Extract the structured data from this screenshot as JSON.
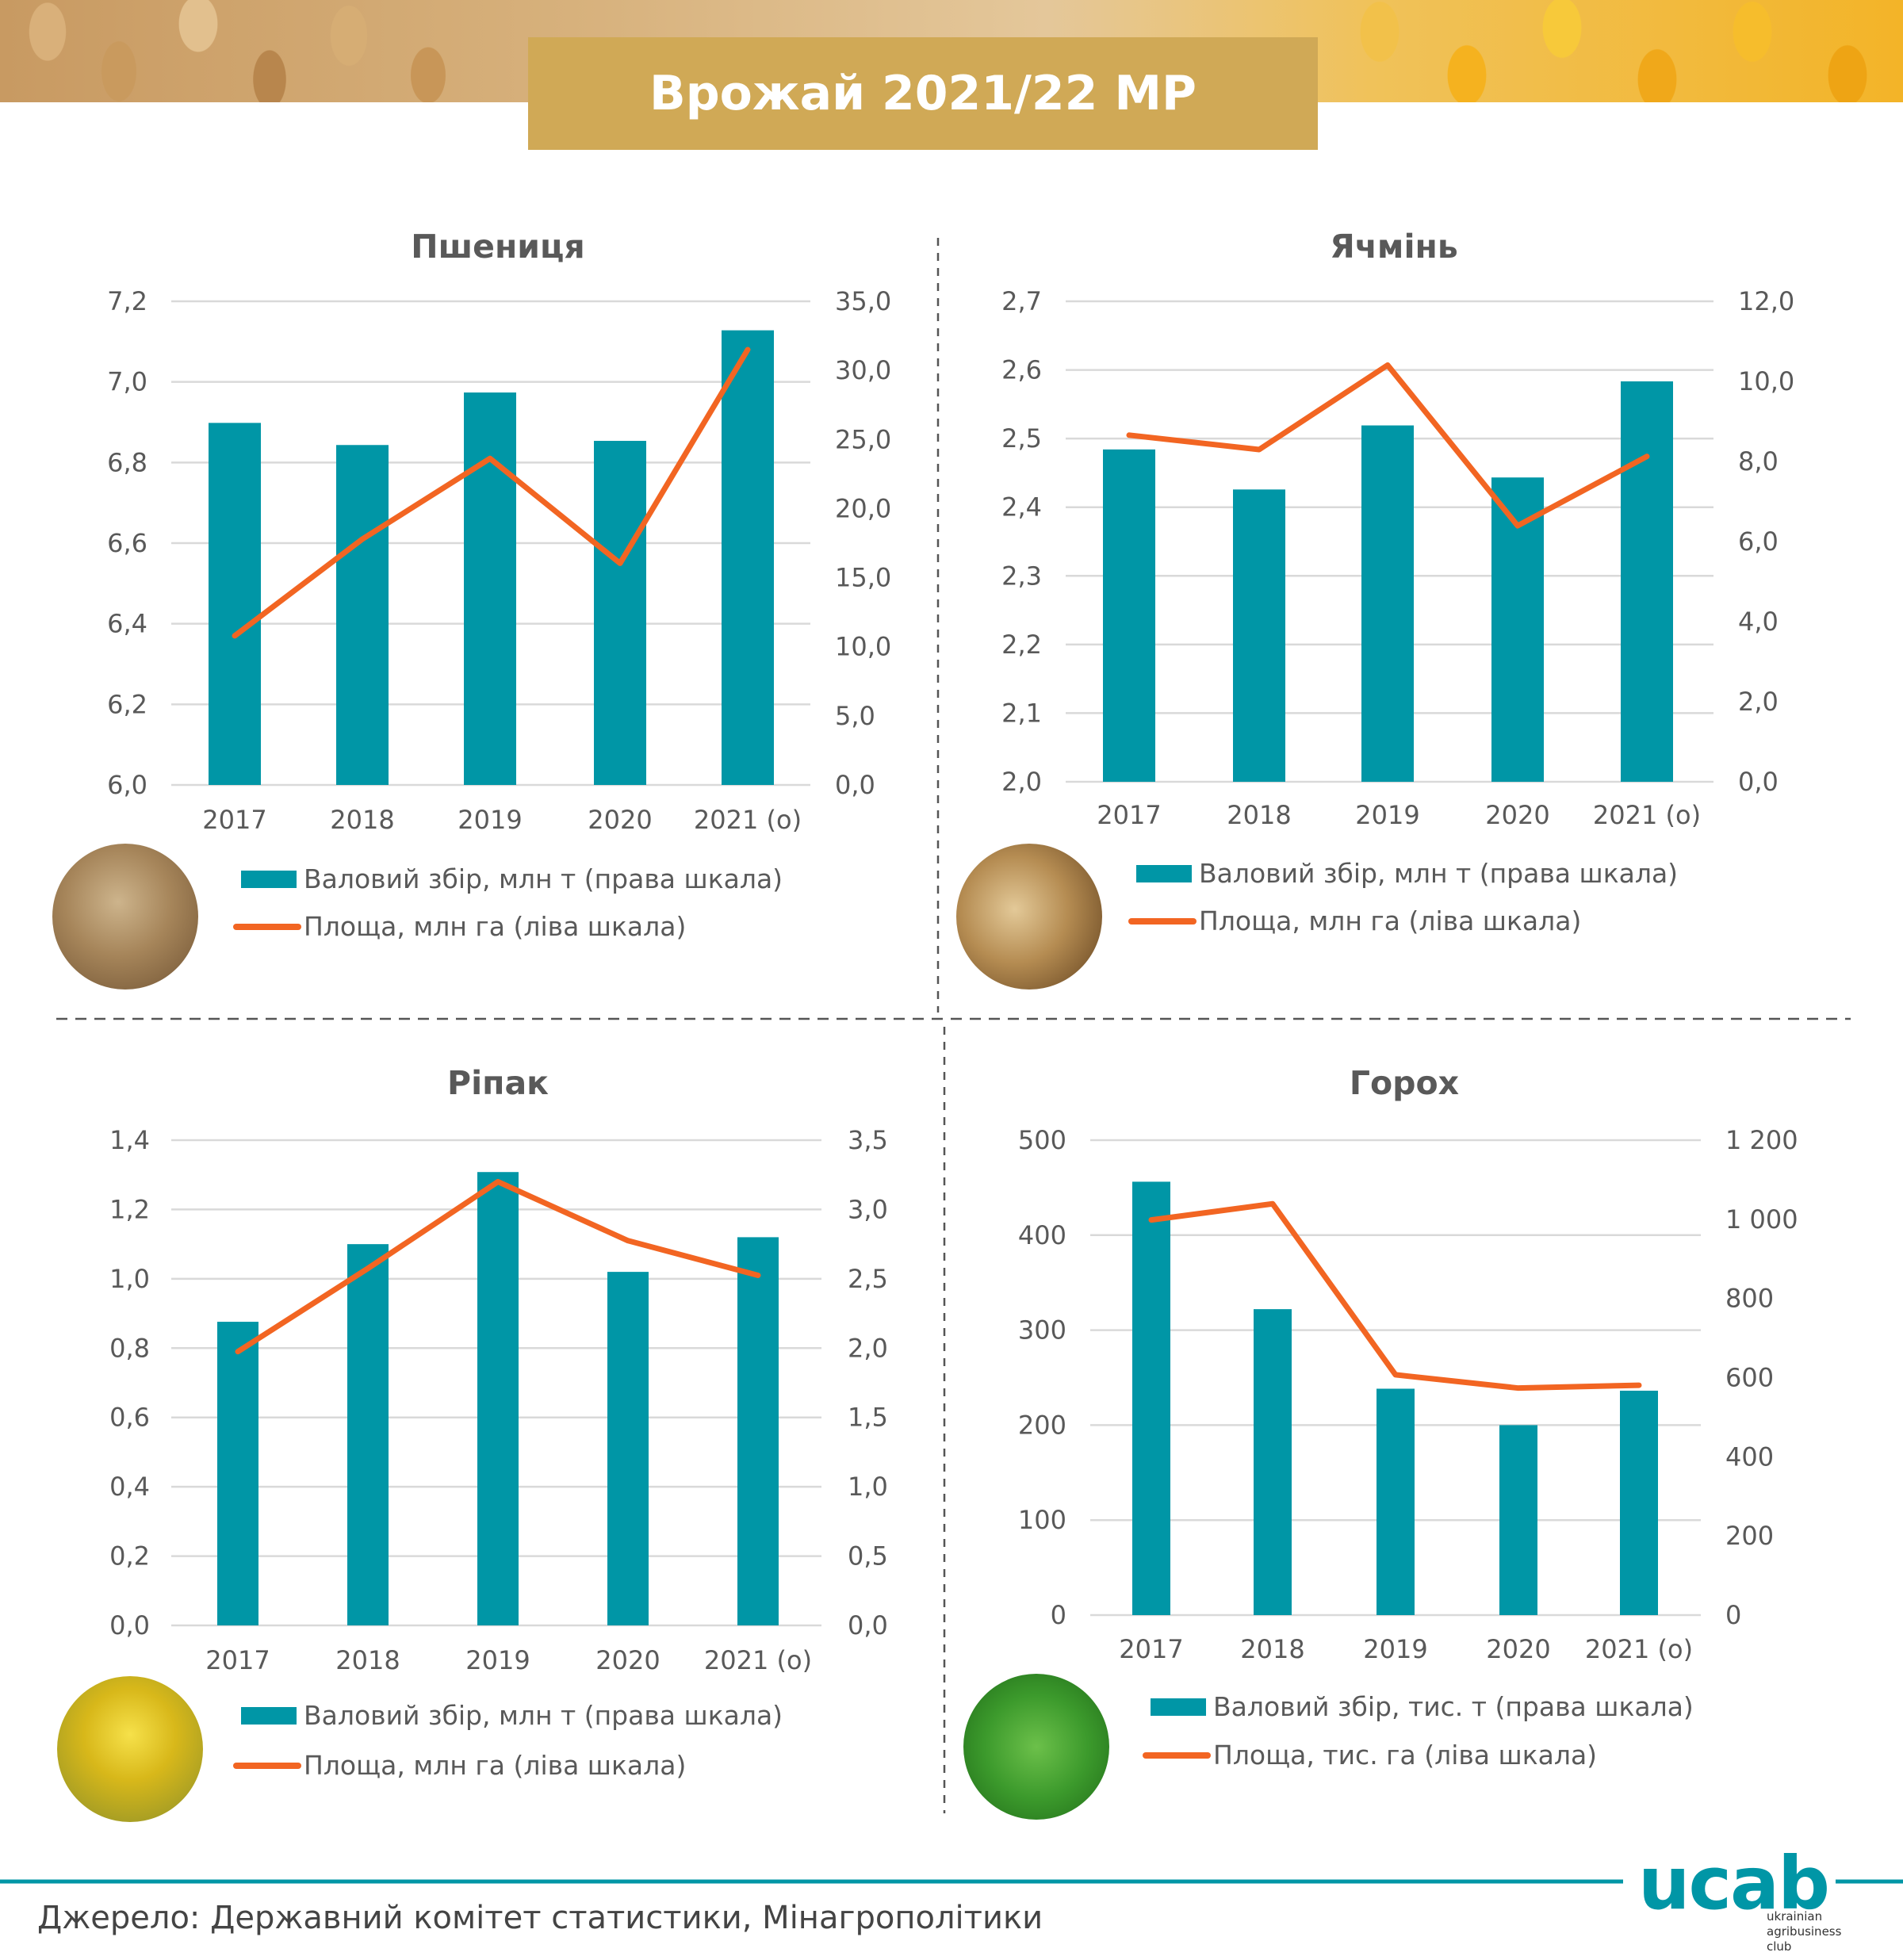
{
  "header": {
    "title": "Врожай 2021/22 МР"
  },
  "colors": {
    "bars": "#0096A6",
    "line": "#F26522",
    "grid": "#D9D9D9",
    "axis_text": "#595959",
    "title_text": "#595959",
    "title_box": "#D0A956",
    "footer_line": "#0096A6"
  },
  "chart_data": [
    {
      "id": "wheat",
      "type": "bar+line",
      "title": "Пшениця",
      "categories": [
        "2017",
        "2018",
        "2019",
        "2020",
        "2021 (о)"
      ],
      "series": [
        {
          "name": "Валовий збір, млн т (права шкала)",
          "type": "bar",
          "axis": "right",
          "values": [
            26.2,
            24.6,
            28.4,
            24.9,
            32.9
          ]
        },
        {
          "name": "Площа, млн га (ліва шкала)",
          "type": "line",
          "axis": "left",
          "values": [
            6.37,
            6.61,
            6.81,
            6.55,
            7.08
          ]
        }
      ],
      "left_axis": {
        "range": [
          6.0,
          7.2
        ],
        "ticks": [
          "6,0",
          "6,2",
          "6,4",
          "6,6",
          "6,8",
          "7,0",
          "7,2"
        ]
      },
      "right_axis": {
        "range": [
          0,
          35
        ],
        "ticks": [
          "0,0",
          "5,0",
          "10,0",
          "15,0",
          "20,0",
          "25,0",
          "30,0",
          "35,0"
        ]
      },
      "grid": true,
      "legend_position": "bottom"
    },
    {
      "id": "barley",
      "type": "bar+line",
      "title": "Ячмінь",
      "categories": [
        "2017",
        "2018",
        "2019",
        "2020",
        "2021 (о)"
      ],
      "series": [
        {
          "name": "Валовий збір, млн т (права шкала)",
          "type": "bar",
          "axis": "right",
          "values": [
            8.3,
            7.3,
            8.9,
            7.6,
            10.0
          ]
        },
        {
          "name": "Площа, млн га (ліва шкала)",
          "type": "line",
          "axis": "left",
          "values": [
            2.505,
            2.484,
            2.607,
            2.373,
            2.474
          ]
        }
      ],
      "left_axis": {
        "range": [
          2.0,
          2.7
        ],
        "ticks": [
          "2,0",
          "2,1",
          "2,2",
          "2,3",
          "2,4",
          "2,5",
          "2,6",
          "2,7"
        ]
      },
      "right_axis": {
        "range": [
          0,
          12
        ],
        "ticks": [
          "0,0",
          "2,0",
          "4,0",
          "6,0",
          "8,0",
          "10,0",
          "12,0"
        ]
      },
      "grid": true,
      "legend_position": "bottom"
    },
    {
      "id": "rapeseed",
      "type": "bar+line",
      "title": "Ріпак",
      "categories": [
        "2017",
        "2018",
        "2019",
        "2020",
        "2021 (о)"
      ],
      "series": [
        {
          "name": "Валовий збір, млн т (права шкала)",
          "type": "bar",
          "axis": "right",
          "values": [
            2.19,
            2.75,
            3.27,
            2.55,
            2.8
          ]
        },
        {
          "name": "Площа, млн га (ліва шкала)",
          "type": "line",
          "axis": "left",
          "values": [
            0.79,
            1.03,
            1.28,
            1.11,
            1.01
          ]
        }
      ],
      "left_axis": {
        "range": [
          0.0,
          1.4
        ],
        "ticks": [
          "0,0",
          "0,2",
          "0,4",
          "0,6",
          "0,8",
          "1,0",
          "1,2",
          "1,4"
        ]
      },
      "right_axis": {
        "range": [
          0,
          3.5
        ],
        "ticks": [
          "0,0",
          "0,5",
          "1,0",
          "1,5",
          "2,0",
          "2,5",
          "3,0",
          "3,5"
        ]
      },
      "grid": true,
      "legend_position": "bottom"
    },
    {
      "id": "peas",
      "type": "bar+line",
      "title": "Горох",
      "categories": [
        "2017",
        "2018",
        "2019",
        "2020",
        "2021 (о)"
      ],
      "series": [
        {
          "name": "Валовий збір, тис. т (права шкала)",
          "type": "bar",
          "axis": "right",
          "values": [
            1095,
            773,
            572,
            480,
            567
          ]
        },
        {
          "name": "Площа, тис. га (ліва шкала)",
          "type": "line",
          "axis": "left",
          "values": [
            416,
            433,
            253,
            239,
            242
          ]
        }
      ],
      "left_axis": {
        "range": [
          0,
          500
        ],
        "ticks": [
          "0",
          "100",
          "200",
          "300",
          "400",
          "500"
        ]
      },
      "right_axis": {
        "range": [
          0,
          1200
        ],
        "ticks": [
          "0",
          "200",
          "400",
          "600",
          "800",
          "1 000",
          "1 200"
        ]
      },
      "grid": true,
      "legend_position": "bottom"
    }
  ],
  "photos": [
    {
      "name": "wheat-photo"
    },
    {
      "name": "barley-photo"
    },
    {
      "name": "rapeseed-photo"
    },
    {
      "name": "peas-photo"
    }
  ],
  "footer": {
    "source": "Джерело: Державний комітет статистики, Мінагрополітики",
    "logo": "ucab",
    "logo_sub": [
      "ukrainian",
      "agribusiness",
      "club"
    ]
  }
}
